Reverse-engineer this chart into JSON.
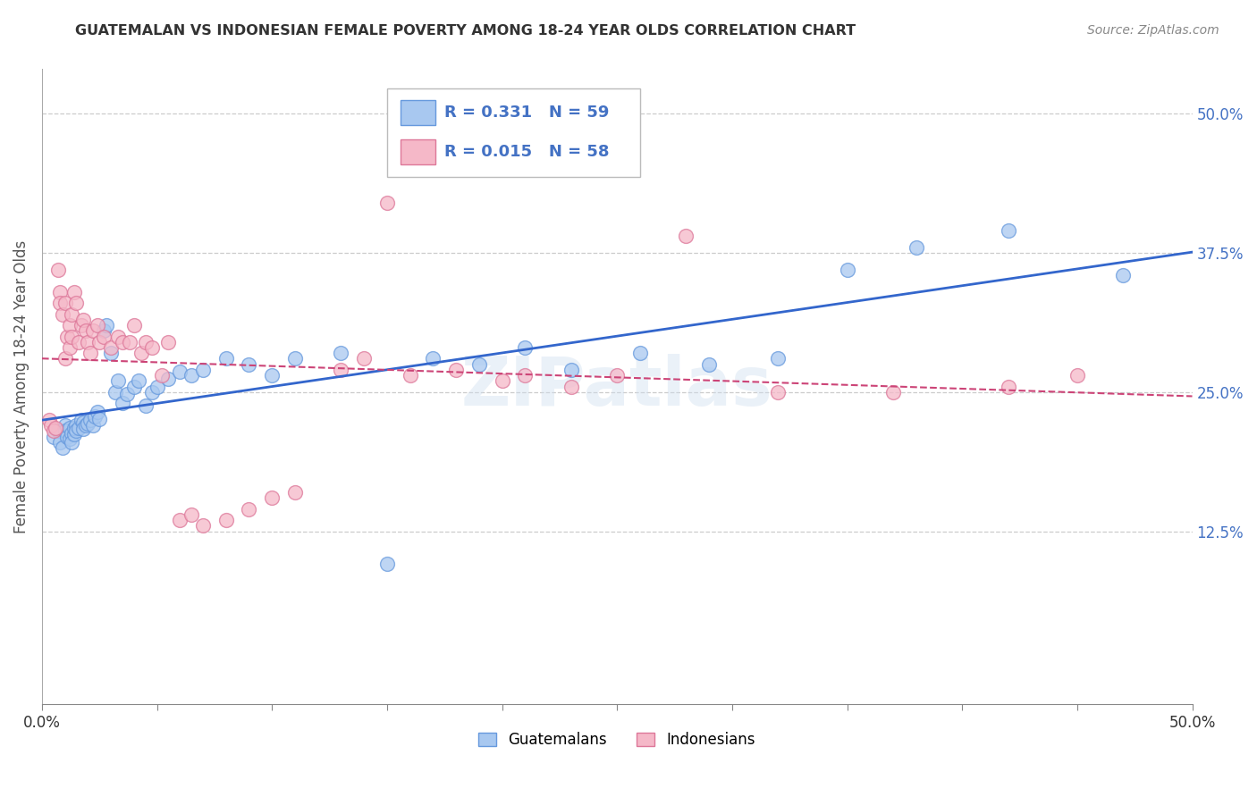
{
  "title": "GUATEMALAN VS INDONESIAN FEMALE POVERTY AMONG 18-24 YEAR OLDS CORRELATION CHART",
  "source": "Source: ZipAtlas.com",
  "ylabel": "Female Poverty Among 18-24 Year Olds",
  "xlim": [
    0,
    0.5
  ],
  "ylim": [
    -0.03,
    0.54
  ],
  "ytick_vals": [
    0.125,
    0.25,
    0.375,
    0.5
  ],
  "yticklabels": [
    "12.5%",
    "25.0%",
    "37.5%",
    "50.0%"
  ],
  "blue_color": "#A8C8F0",
  "blue_edge": "#6699DD",
  "pink_color": "#F5B8C8",
  "pink_edge": "#DD7799",
  "trend_blue": "#3366CC",
  "trend_pink": "#CC4477",
  "legend_r_blue": "R = 0.331",
  "legend_n_blue": "N = 59",
  "legend_r_pink": "R = 0.015",
  "legend_n_pink": "N = 58",
  "blue_scatter_x": [
    0.005,
    0.007,
    0.008,
    0.009,
    0.01,
    0.01,
    0.011,
    0.012,
    0.012,
    0.013,
    0.013,
    0.014,
    0.014,
    0.015,
    0.015,
    0.016,
    0.017,
    0.018,
    0.018,
    0.019,
    0.02,
    0.021,
    0.022,
    0.023,
    0.024,
    0.025,
    0.027,
    0.028,
    0.03,
    0.032,
    0.033,
    0.035,
    0.037,
    0.04,
    0.042,
    0.045,
    0.048,
    0.05,
    0.055,
    0.06,
    0.065,
    0.07,
    0.08,
    0.09,
    0.1,
    0.11,
    0.13,
    0.15,
    0.17,
    0.19,
    0.21,
    0.23,
    0.26,
    0.29,
    0.32,
    0.35,
    0.38,
    0.42,
    0.47
  ],
  "blue_scatter_y": [
    0.21,
    0.215,
    0.205,
    0.2,
    0.22,
    0.215,
    0.21,
    0.208,
    0.218,
    0.213,
    0.205,
    0.212,
    0.218,
    0.22,
    0.215,
    0.218,
    0.225,
    0.223,
    0.217,
    0.22,
    0.222,
    0.225,
    0.22,
    0.228,
    0.232,
    0.226,
    0.305,
    0.31,
    0.285,
    0.25,
    0.26,
    0.24,
    0.248,
    0.255,
    0.26,
    0.238,
    0.25,
    0.255,
    0.262,
    0.268,
    0.265,
    0.27,
    0.28,
    0.275,
    0.265,
    0.28,
    0.285,
    0.096,
    0.28,
    0.275,
    0.29,
    0.27,
    0.285,
    0.275,
    0.28,
    0.36,
    0.38,
    0.395,
    0.355
  ],
  "pink_scatter_x": [
    0.003,
    0.004,
    0.005,
    0.006,
    0.007,
    0.008,
    0.008,
    0.009,
    0.01,
    0.01,
    0.011,
    0.012,
    0.012,
    0.013,
    0.013,
    0.014,
    0.015,
    0.016,
    0.017,
    0.018,
    0.019,
    0.02,
    0.021,
    0.022,
    0.024,
    0.025,
    0.027,
    0.03,
    0.033,
    0.035,
    0.038,
    0.04,
    0.043,
    0.045,
    0.048,
    0.052,
    0.055,
    0.06,
    0.065,
    0.07,
    0.08,
    0.09,
    0.1,
    0.11,
    0.13,
    0.14,
    0.15,
    0.16,
    0.18,
    0.2,
    0.21,
    0.23,
    0.25,
    0.28,
    0.32,
    0.37,
    0.42,
    0.45
  ],
  "pink_scatter_y": [
    0.225,
    0.22,
    0.215,
    0.218,
    0.36,
    0.34,
    0.33,
    0.32,
    0.28,
    0.33,
    0.3,
    0.31,
    0.29,
    0.32,
    0.3,
    0.34,
    0.33,
    0.295,
    0.31,
    0.315,
    0.305,
    0.295,
    0.285,
    0.305,
    0.31,
    0.295,
    0.3,
    0.29,
    0.3,
    0.295,
    0.295,
    0.31,
    0.285,
    0.295,
    0.29,
    0.265,
    0.295,
    0.135,
    0.14,
    0.13,
    0.135,
    0.145,
    0.155,
    0.16,
    0.27,
    0.28,
    0.42,
    0.265,
    0.27,
    0.26,
    0.265,
    0.255,
    0.265,
    0.39,
    0.25,
    0.25,
    0.255,
    0.265
  ],
  "watermark": "ZIPatlas",
  "background_color": "#FFFFFF",
  "grid_color": "#CCCCCC",
  "axis_label_color": "#555555",
  "right_tick_color": "#4472C4",
  "legend_text_color": "#000000"
}
